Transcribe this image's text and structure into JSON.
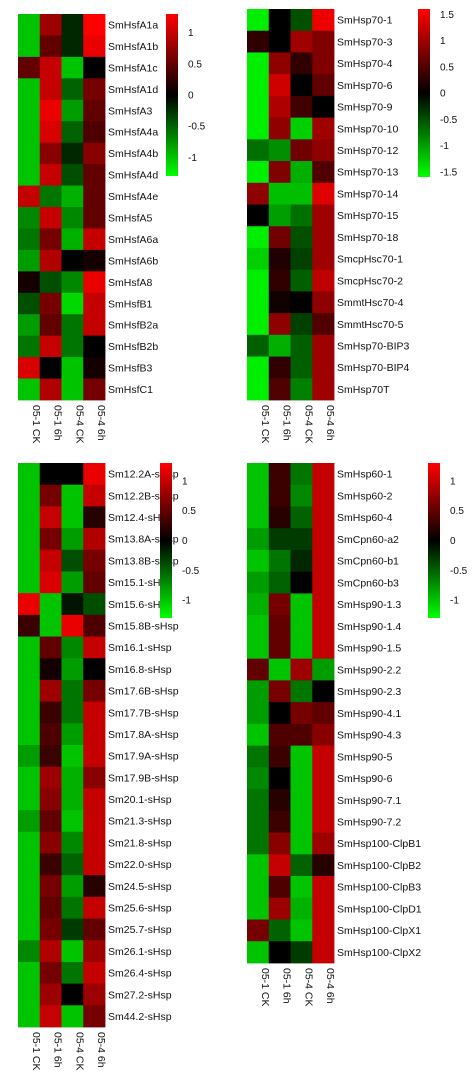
{
  "colors": {
    "low": "#00ff00",
    "mid": "#000000",
    "high": "#ff0000"
  },
  "chart_data": [
    {
      "type": "heatmap",
      "panel": "top-left",
      "columns": [
        "05-1 CK",
        "05-1 6h",
        "05-4 CK",
        "05-4 6h"
      ],
      "rows": [
        "SmHsfA1a",
        "SmHsfA1b",
        "SmHsfA1c",
        "SmHsfA1d",
        "SmHsfA3",
        "SmHsfA4a",
        "SmHsfA4b",
        "SmHsfA4d",
        "SmHsfA4e",
        "SmHsfA5",
        "SmHsfA6a",
        "SmHsfA6b",
        "SmHsfA8",
        "SmHsfB1",
        "SmHsfB2a",
        "SmHsfB2b",
        "SmHsfB3",
        "SmHsfC1"
      ],
      "values": [
        [
          -1.0,
          0.8,
          -0.2,
          1.3
        ],
        [
          -1.0,
          0.5,
          -0.2,
          1.2
        ],
        [
          0.5,
          1.0,
          -1.0,
          0.0
        ],
        [
          -1.0,
          1.0,
          -0.5,
          0.6
        ],
        [
          -1.0,
          1.2,
          -0.8,
          0.5
        ],
        [
          -1.0,
          1.1,
          -0.5,
          0.4
        ],
        [
          -1.0,
          0.7,
          -0.2,
          0.7
        ],
        [
          -1.0,
          1.0,
          -0.4,
          0.5
        ],
        [
          1.0,
          -0.6,
          -0.9,
          0.5
        ],
        [
          -0.7,
          1.0,
          -0.7,
          0.5
        ],
        [
          -0.6,
          0.6,
          -0.9,
          1.0
        ],
        [
          -0.8,
          0.9,
          0.0,
          0.1
        ],
        [
          0.1,
          -0.4,
          -0.7,
          1.2
        ],
        [
          -0.4,
          0.6,
          -1.1,
          1.0
        ],
        [
          -0.8,
          0.5,
          -0.6,
          1.0
        ],
        [
          -0.6,
          1.0,
          -0.6,
          0.0
        ],
        [
          1.1,
          0.0,
          -1.0,
          0.1
        ],
        [
          -1.0,
          0.9,
          -1.0,
          0.6
        ]
      ],
      "colorbar_ticks": [
        1,
        0.5,
        0,
        -0.5,
        -1
      ],
      "colorbar_range": [
        -1.3,
        1.3
      ]
    },
    {
      "type": "heatmap",
      "panel": "top-right",
      "columns": [
        "05-1 CK",
        "05-1 6h",
        "05-4 CK",
        "05-4 6h"
      ],
      "rows": [
        "SmHsp70-1",
        "SmHsp70-3",
        "SmHsp70-4",
        "SmHsp70-6",
        "SmHsp70-9",
        "SmHsp70-10",
        "SmHsp70-12",
        "SmHsp70-13",
        "SmHsp70-14",
        "SmHsp70-15",
        "SmHsp70-18",
        "SmcpHsc70-1",
        "SmcpHsc70-2",
        "SmmtHsc70-4",
        "SmmtHsc70-5",
        "SmHsp70-BIP3",
        "SmHsp70-BIP4",
        "SmHsp70T"
      ],
      "values": [
        [
          -1.5,
          0.0,
          -0.5,
          1.5
        ],
        [
          0.3,
          0.0,
          1.0,
          0.8
        ],
        [
          -1.5,
          0.9,
          0.3,
          0.8
        ],
        [
          -1.5,
          1.3,
          0.0,
          0.6
        ],
        [
          -1.5,
          1.1,
          0.4,
          0.0
        ],
        [
          -1.5,
          0.9,
          -1.3,
          1.0
        ],
        [
          -0.7,
          -0.9,
          0.7,
          0.9
        ],
        [
          -1.5,
          0.8,
          -1.1,
          0.5
        ],
        [
          0.9,
          -1.2,
          -1.2,
          1.4
        ],
        [
          0.0,
          -1.0,
          -0.7,
          1.0
        ],
        [
          -1.5,
          0.7,
          -0.5,
          1.0
        ],
        [
          -1.3,
          0.2,
          -0.4,
          1.0
        ],
        [
          -1.5,
          0.3,
          -0.6,
          1.2
        ],
        [
          -1.5,
          0.1,
          0.0,
          0.9
        ],
        [
          -1.5,
          0.9,
          -0.4,
          0.5
        ],
        [
          -0.6,
          -1.1,
          -0.6,
          1.0
        ],
        [
          -1.5,
          0.3,
          -0.6,
          1.0
        ],
        [
          -1.5,
          0.5,
          -0.8,
          1.0
        ]
      ],
      "colorbar_ticks": [
        1.5,
        1,
        0.5,
        0,
        -0.5,
        -1,
        -1.5
      ],
      "colorbar_range": [
        -1.6,
        1.6
      ]
    },
    {
      "type": "heatmap",
      "panel": "bottom-left",
      "columns": [
        "05-1 CK",
        "05-1 6h",
        "05-4 CK",
        "05-4 6h"
      ],
      "rows": [
        "Sm12.2A-sHsp",
        "Sm12.2B-sHsp",
        "Sm12.4-sHsp",
        "Sm13.8A-sHsp",
        "Sm13.8B-sHsp",
        "Sm15.1-sHsp",
        "Sm15.6-sHsp",
        "Sm15.8B-sHsp",
        "Sm16.1-sHsp",
        "Sm16.8-sHsp",
        "Sm17.6B-sHsp",
        "Sm17.7B-sHsp",
        "Sm17.8A-sHsp",
        "Sm17.9A-sHsp",
        "Sm17.9B-sHsp",
        "Sm20.1-sHsp",
        "Sm21.3-sHsp",
        "Sm21.8-sHsp",
        "Sm22.0-sHsp",
        "Sm24.5-sHsp",
        "Sm25.6-sHsp",
        "Sm25.7-sHsp",
        "Sm26.1-sHsp",
        "Sm26.4-sHsp",
        "Sm27.2-sHsp",
        "Sm44.2-sHsp"
      ],
      "values": [
        [
          -1.0,
          0.0,
          0.0,
          1.2
        ],
        [
          -1.0,
          0.6,
          -1.0,
          1.0
        ],
        [
          -1.0,
          1.0,
          -1.0,
          0.2
        ],
        [
          -1.0,
          0.6,
          -0.8,
          0.9
        ],
        [
          -1.0,
          1.0,
          -0.4,
          0.6
        ],
        [
          -1.0,
          1.1,
          -0.8,
          0.5
        ],
        [
          1.2,
          -1.0,
          -0.1,
          -0.4
        ],
        [
          0.3,
          -1.0,
          1.2,
          0.4
        ],
        [
          -1.0,
          0.5,
          -0.7,
          1.0
        ],
        [
          -1.0,
          0.1,
          -0.8,
          0.0
        ],
        [
          -1.0,
          0.8,
          -0.6,
          0.6
        ],
        [
          -1.0,
          0.3,
          -0.6,
          1.0
        ],
        [
          -1.0,
          0.4,
          -0.8,
          1.0
        ],
        [
          -0.8,
          0.3,
          -1.0,
          1.0
        ],
        [
          -1.0,
          0.8,
          -0.9,
          0.7
        ],
        [
          -1.0,
          0.7,
          -0.9,
          1.0
        ],
        [
          -0.8,
          0.5,
          -1.0,
          1.0
        ],
        [
          -1.0,
          0.7,
          -0.7,
          1.0
        ],
        [
          -1.0,
          0.3,
          -0.5,
          1.0
        ],
        [
          -1.0,
          0.6,
          -0.8,
          0.2
        ],
        [
          -1.0,
          0.5,
          -0.6,
          1.0
        ],
        [
          -1.0,
          0.6,
          -0.3,
          0.5
        ],
        [
          -0.7,
          0.9,
          -1.0,
          0.8
        ],
        [
          -1.0,
          0.6,
          -0.6,
          1.0
        ],
        [
          -1.0,
          0.8,
          0.0,
          0.8
        ],
        [
          -1.0,
          1.0,
          -1.0,
          0.6
        ]
      ],
      "colorbar_ticks": [
        1,
        0.5,
        0,
        -0.5,
        -1
      ],
      "colorbar_range": [
        -1.3,
        1.3
      ]
    },
    {
      "type": "heatmap",
      "panel": "bottom-right",
      "columns": [
        "05-1 CK",
        "05-1 6h",
        "05-4 CK",
        "05-4 6h"
      ],
      "rows": [
        "SmHsp60-1",
        "SmHsp60-2",
        "SmHsp60-4",
        "SmCpn60-a2",
        "SmCpn60-b1",
        "SmCpn60-b3",
        "SmHsp90-1.3",
        "SmHsp90-1.4",
        "SmHsp90-1.5",
        "SmHsp90-2.2",
        "SmHsp90-2.3",
        "SmHsp90-4.1",
        "SmHsp90-4.3",
        "SmHsp90-5",
        "SmHsp90-6",
        "SmHsp90-7.1",
        "SmHsp90-7.2",
        "SmHsp100-ClpB1",
        "SmHsp100-ClpB2",
        "SmHsp100-ClpB3",
        "SmHsp100-ClpD1",
        "SmHsp100-ClpX1",
        "SmHsp100-ClpX2"
      ],
      "values": [
        [
          -1.0,
          0.3,
          -0.6,
          1.0
        ],
        [
          -1.0,
          0.3,
          -0.7,
          1.0
        ],
        [
          -1.0,
          0.2,
          -0.5,
          1.0
        ],
        [
          -0.8,
          -0.3,
          -0.3,
          1.0
        ],
        [
          -1.0,
          -0.6,
          -0.2,
          1.0
        ],
        [
          -0.8,
          -0.5,
          0.0,
          1.0
        ],
        [
          -0.9,
          0.6,
          -1.0,
          1.0
        ],
        [
          -1.0,
          0.5,
          -1.0,
          1.0
        ],
        [
          -1.0,
          0.5,
          -1.0,
          1.0
        ],
        [
          0.5,
          -1.0,
          0.8,
          -0.8
        ],
        [
          -0.8,
          0.6,
          -0.6,
          0.0
        ],
        [
          -0.8,
          0.0,
          0.6,
          0.5
        ],
        [
          -1.0,
          0.4,
          0.4,
          0.7
        ],
        [
          -0.6,
          0.3,
          -1.0,
          1.0
        ],
        [
          -0.7,
          0.0,
          -1.0,
          1.0
        ],
        [
          -0.6,
          0.2,
          -1.0,
          1.0
        ],
        [
          -0.6,
          0.3,
          -1.0,
          1.0
        ],
        [
          -0.6,
          0.7,
          -1.0,
          0.8
        ],
        [
          -1.0,
          1.0,
          -0.5,
          0.2
        ],
        [
          -1.0,
          0.4,
          -1.0,
          1.0
        ],
        [
          -1.0,
          0.8,
          -0.9,
          1.0
        ],
        [
          0.6,
          -0.5,
          -1.0,
          1.0
        ],
        [
          -1.0,
          0.0,
          -0.3,
          1.0
        ]
      ],
      "colorbar_ticks": [
        1,
        0.5,
        0,
        -0.5,
        -1
      ],
      "colorbar_range": [
        -1.3,
        1.3
      ]
    }
  ]
}
